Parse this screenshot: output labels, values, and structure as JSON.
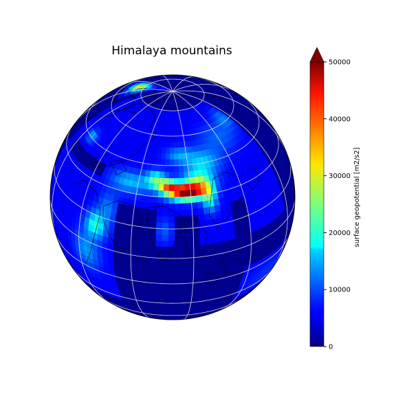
{
  "title": "Himalaya mountains",
  "colorbar": {
    "label": "surface geopotential [m2/s2]",
    "min": 0,
    "max": 50000,
    "ticks": [
      0,
      10000,
      20000,
      30000,
      40000,
      50000
    ],
    "tick_labels": [
      "0",
      "10000",
      "20000",
      "30000",
      "40000",
      "50000"
    ],
    "extend": "max",
    "colormap": "jet"
  },
  "map": {
    "projection": "orthographic",
    "center_lon": 80,
    "center_lat": 30,
    "gridlines": true,
    "coastlines": true
  },
  "colors": {
    "ocean": "#00008f",
    "grid": "#d8d8d8",
    "coast": "#000000"
  }
}
